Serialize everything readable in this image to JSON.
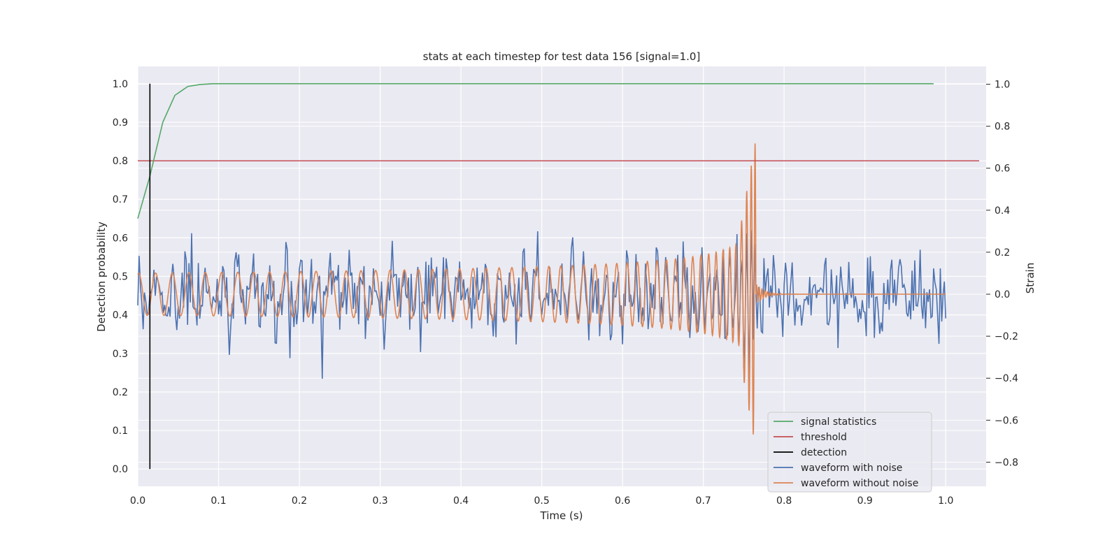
{
  "chart_data": {
    "type": "line",
    "title": "stats at each timestep for test data 156 [signal=1.0]",
    "xlabel": "Time (s)",
    "ylabel_left": "Detection probability",
    "ylabel_right": "Strain",
    "xlim": [
      0.0,
      1.05
    ],
    "ylim_left": [
      -0.045,
      1.045
    ],
    "ylim_right": [
      -0.915,
      1.085
    ],
    "x_ticks": [
      "0.0",
      "0.1",
      "0.2",
      "0.3",
      "0.4",
      "0.5",
      "0.6",
      "0.7",
      "0.8",
      "0.9",
      "1.0"
    ],
    "x_tick_values": [
      0,
      0.1,
      0.2,
      0.3,
      0.4,
      0.5,
      0.6,
      0.7,
      0.8,
      0.9,
      1.0
    ],
    "y_left_ticks": [
      "0.0",
      "0.1",
      "0.2",
      "0.3",
      "0.4",
      "0.5",
      "0.6",
      "0.7",
      "0.8",
      "0.9",
      "1.0"
    ],
    "y_left_tick_values": [
      0,
      0.1,
      0.2,
      0.3,
      0.4,
      0.5,
      0.6,
      0.7,
      0.8,
      0.9,
      1.0
    ],
    "y_right_ticks": [
      "−0.8",
      "−0.6",
      "−0.4",
      "−0.2",
      "0.0",
      "0.2",
      "0.4",
      "0.6",
      "0.8",
      "1.0"
    ],
    "y_right_tick_values": [
      -0.8,
      -0.6,
      -0.4,
      -0.2,
      0,
      0.2,
      0.4,
      0.6,
      0.8,
      1.0
    ],
    "grid": true,
    "legend_position": "bottom-right",
    "series": [
      {
        "name": "signal statistics",
        "axis": "left",
        "color": "#55a868",
        "x": [
          0.0,
          0.015,
          0.031,
          0.046,
          0.062,
          0.077,
          0.093,
          0.2,
          0.4,
          0.6,
          0.8,
          0.985
        ],
        "y": [
          0.65,
          0.76,
          0.9,
          0.97,
          0.993,
          0.998,
          1.0,
          1.0,
          1.0,
          1.0,
          1.0,
          1.0
        ]
      },
      {
        "name": "threshold",
        "axis": "left",
        "color": "#c44e52",
        "x": [
          0.0,
          1.05
        ],
        "y": [
          0.8,
          0.8
        ]
      },
      {
        "name": "detection",
        "axis": "left",
        "color": "#000000",
        "x": [
          0.015,
          0.015
        ],
        "y": [
          0.0,
          1.0
        ]
      },
      {
        "name": "waveform with noise",
        "axis": "right",
        "color": "#4c72b0",
        "x_start": 0.0,
        "x_end": 1.0,
        "points": 600
      },
      {
        "name": "waveform without noise",
        "axis": "right",
        "color": "#dd8452",
        "merger_time": 0.765,
        "x_end": 1.0
      }
    ]
  }
}
